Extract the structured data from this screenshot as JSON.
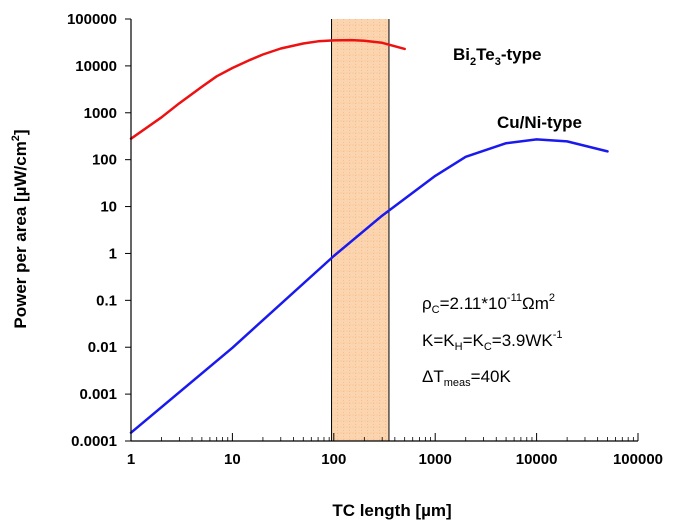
{
  "chart_data": {
    "type": "line",
    "xscale": "log",
    "yscale": "log",
    "xlim": [
      1,
      100000
    ],
    "ylim": [
      0.0001,
      100000
    ],
    "xlabel": {
      "pre": "TC length [",
      "sym": "µ",
      "post": "m]"
    },
    "ylabel": {
      "pre": "Power per area [",
      "sym": "µ",
      "post": "W/cm",
      "sup": "2",
      "end": "]"
    },
    "x_tick_labels": [
      "1",
      "10",
      "100",
      "1000",
      "10000",
      "100000"
    ],
    "y_tick_labels": [
      "0.0001",
      "0.001",
      "0.01",
      "0.1",
      "1",
      "10",
      "100",
      "1000",
      "10000",
      "100000"
    ],
    "grid": false,
    "highlight_region": {
      "x": [
        95,
        350
      ],
      "color": "#fbd5b0",
      "grid_color": "#f5a76a"
    },
    "series": [
      {
        "color": "#ee1111",
        "label": {
          "p1": "Bi",
          "s1": "2",
          "p2": "Te",
          "s2": "3",
          "p3": "-type"
        },
        "x": [
          1,
          2,
          3,
          5,
          7,
          10,
          15,
          20,
          30,
          50,
          70,
          100,
          150,
          200,
          300,
          500
        ],
        "y": [
          280,
          800,
          1600,
          3600,
          6000,
          9000,
          13500,
          17500,
          23500,
          30000,
          33500,
          35000,
          35500,
          34500,
          31000,
          23000
        ]
      },
      {
        "color": "#1a1aee",
        "label": {
          "p1": "Cu/Ni-type"
        },
        "x": [
          1,
          10,
          100,
          300,
          1000,
          2000,
          5000,
          10000,
          20000,
          50000
        ],
        "y": [
          0.00015,
          0.0097,
          0.88,
          6.4,
          45,
          115,
          225,
          270,
          245,
          150
        ]
      }
    ],
    "annotations": {
      "rho": {
        "p1": "ρ",
        "s1": "C",
        "p2": "=2.11*10",
        "sup1": "-11",
        "p3": "Ωm",
        "sup2": "2"
      },
      "k": {
        "p1": "K=K",
        "s1": "H",
        "p2": "=K",
        "s2": "C",
        "p3": "=3.9WK",
        "sup1": "-1"
      },
      "dt": {
        "p1": "ΔT",
        "s1": "meas",
        "p2": "=40K"
      }
    }
  }
}
